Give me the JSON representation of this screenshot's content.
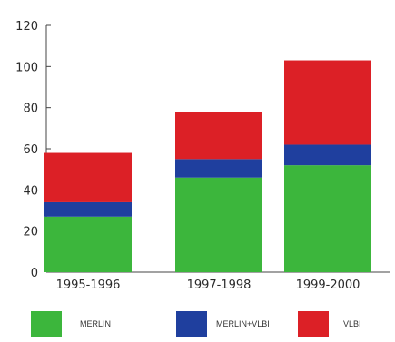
{
  "chart_data": {
    "type": "bar",
    "stacked": true,
    "categories": [
      "1995-1996",
      "1997-1998",
      "1999-2000"
    ],
    "series": [
      {
        "name": "MERLIN",
        "values": [
          27,
          46,
          52
        ],
        "color": "#3cb63c"
      },
      {
        "name": "MERLIN+VLBI",
        "values": [
          7,
          9,
          10
        ],
        "color": "#1f3f9e"
      },
      {
        "name": "VLBI",
        "values": [
          24,
          23,
          41
        ],
        "color": "#dc2026"
      }
    ],
    "y_ticks": [
      "0",
      "20",
      "40",
      "60",
      "80",
      "100",
      "120"
    ],
    "ylim": [
      0,
      120
    ],
    "grid": false,
    "legend_position": "bottom"
  }
}
